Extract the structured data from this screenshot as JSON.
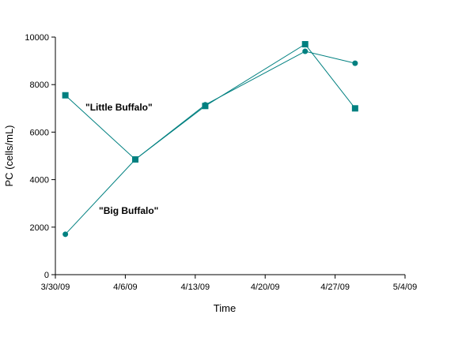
{
  "chart_data": {
    "type": "line",
    "title": "",
    "xlabel": "Time",
    "ylabel": "PC (cells/mL)",
    "ylim": [
      0,
      10000
    ],
    "y_ticks": [
      "0",
      "2000",
      "4000",
      "6000",
      "8000",
      "10000"
    ],
    "x_ticks": [
      "3/30/09",
      "4/6/09",
      "4/13/09",
      "4/20/09",
      "4/27/09",
      "5/4/09"
    ],
    "xlim": [
      "3/30/09",
      "5/4/09"
    ],
    "grid": false,
    "series_color": "#008080",
    "series": [
      {
        "marker": "square",
        "x": [
          "3/31/09",
          "4/7/09",
          "4/14/09",
          "4/24/09",
          "4/29/09"
        ],
        "y": [
          7550,
          4850,
          7100,
          9700,
          7000
        ]
      },
      {
        "marker": "circle",
        "x": [
          "3/31/09",
          "4/7/09",
          "4/14/09",
          "4/24/09",
          "4/29/09"
        ],
        "y": [
          1700,
          4850,
          7150,
          9400,
          8900
        ]
      }
    ],
    "annotations": [
      {
        "text": "\"Little Buffalo\"",
        "series": 0
      },
      {
        "text": "\"Big Buffalo\"",
        "series": 1
      }
    ]
  }
}
